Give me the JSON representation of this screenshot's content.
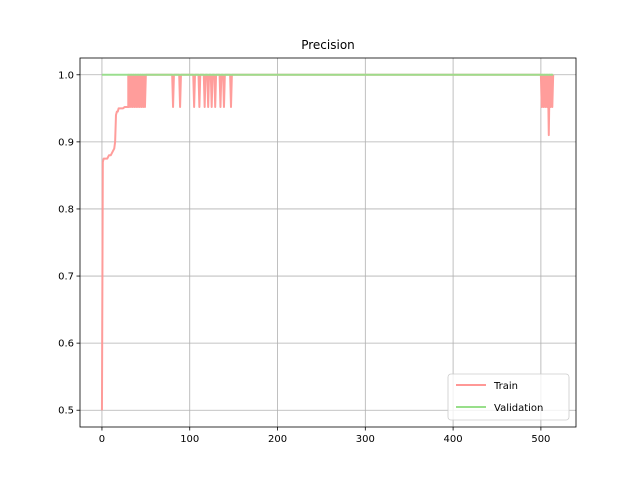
{
  "chart_data": {
    "type": "line",
    "title": "Precision",
    "xlabel": "",
    "ylabel": "",
    "xlim": [
      -25,
      540
    ],
    "ylim": [
      0.475,
      1.025
    ],
    "xticks": [
      0,
      100,
      200,
      300,
      400,
      500
    ],
    "xtick_labels": [
      "0",
      "100",
      "200",
      "300",
      "400",
      "500"
    ],
    "yticks": [
      0.5,
      0.6,
      0.7,
      0.8,
      0.9,
      1.0
    ],
    "ytick_labels": [
      "0.5",
      "0.6",
      "0.7",
      "0.8",
      "0.9",
      "1.0"
    ],
    "grid": true,
    "legend_position": "lower-right",
    "series": [
      {
        "name": "Train",
        "color": "#ff9896",
        "x": [
          0,
          1,
          2,
          4,
          6,
          8,
          10,
          12,
          14,
          15,
          16,
          17,
          18,
          19,
          20,
          22,
          24,
          26,
          28,
          30,
          30,
          31,
          32,
          33,
          34,
          35,
          36,
          37,
          38,
          39,
          40,
          41,
          42,
          43,
          44,
          45,
          46,
          47,
          48,
          49,
          50,
          50,
          80,
          81,
          82,
          83,
          88,
          89,
          90,
          104,
          105,
          106,
          110,
          111,
          112,
          116,
          117,
          118,
          120,
          121,
          122,
          124,
          125,
          126,
          128,
          129,
          130,
          134,
          135,
          136,
          138,
          139,
          140,
          146,
          147,
          148,
          500,
          501,
          502,
          503,
          504,
          505,
          506,
          507,
          508,
          509,
          510,
          511,
          512,
          513,
          514
        ],
        "y": [
          0.5,
          0.87,
          0.875,
          0.875,
          0.875,
          0.88,
          0.88,
          0.885,
          0.89,
          0.9,
          0.94,
          0.945,
          0.945,
          0.95,
          0.95,
          0.95,
          0.95,
          0.952,
          0.952,
          0.952,
          1.0,
          0.952,
          1.0,
          0.952,
          1.0,
          0.952,
          1.0,
          0.952,
          1.0,
          0.952,
          1.0,
          0.952,
          1.0,
          0.952,
          1.0,
          0.952,
          1.0,
          0.952,
          1.0,
          0.952,
          1.0,
          1.0,
          1.0,
          0.952,
          1.0,
          1.0,
          1.0,
          0.952,
          1.0,
          1.0,
          0.952,
          1.0,
          1.0,
          0.952,
          1.0,
          1.0,
          0.952,
          1.0,
          1.0,
          0.952,
          1.0,
          1.0,
          0.952,
          1.0,
          1.0,
          0.952,
          1.0,
          1.0,
          0.952,
          1.0,
          1.0,
          0.952,
          1.0,
          1.0,
          0.952,
          1.0,
          1.0,
          0.952,
          1.0,
          0.952,
          1.0,
          0.952,
          1.0,
          0.952,
          1.0,
          0.91,
          1.0,
          0.952,
          1.0,
          0.952,
          1.0
        ]
      },
      {
        "name": "Validation",
        "color": "#98df8a",
        "x": [
          0,
          514
        ],
        "y": [
          1.0,
          1.0
        ]
      }
    ]
  }
}
